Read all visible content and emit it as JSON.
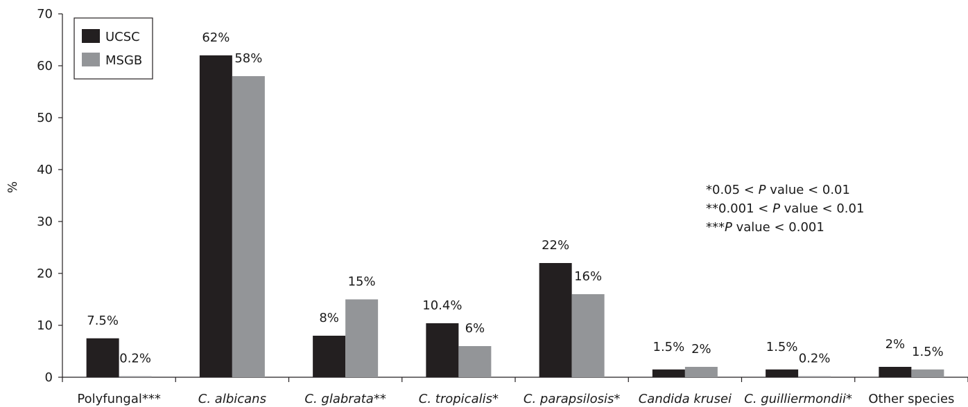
{
  "chart_data": {
    "type": "bar",
    "categories": [
      {
        "label": "Polyfungal***",
        "italic": "",
        "suffix": ""
      },
      {
        "label": "",
        "italic": "C. albicans",
        "suffix": ""
      },
      {
        "label": "",
        "italic": "C. glabrata",
        "suffix": "**"
      },
      {
        "label": "",
        "italic": "C. tropicalis",
        "suffix": "*"
      },
      {
        "label": "",
        "italic": "C. parapsilosis",
        "suffix": "*"
      },
      {
        "label": "",
        "italic": "Candida krusei",
        "suffix": ""
      },
      {
        "label": "",
        "italic": "C. guilliermondii",
        "suffix": "*"
      },
      {
        "label": "Other species",
        "italic": "",
        "suffix": ""
      }
    ],
    "series": [
      {
        "name": "UCSC",
        "color": "#231f20",
        "values": [
          7.5,
          62,
          8,
          10.4,
          22,
          1.5,
          1.5,
          2
        ],
        "labels": [
          "7.5%",
          "62%",
          "8%",
          "10.4%",
          "22%",
          "1.5%",
          "1.5%",
          "2%"
        ]
      },
      {
        "name": "MSGB",
        "color": "#939598",
        "values": [
          0.2,
          58,
          15,
          6,
          16,
          2,
          0.2,
          1.5
        ],
        "labels": [
          "0.2%",
          "58%",
          "15%",
          "6%",
          "16%",
          "2%",
          "0.2%",
          "1.5%"
        ]
      }
    ],
    "ylabel": "%",
    "ylim": [
      0,
      70
    ],
    "yticks": [
      0,
      10,
      20,
      30,
      40,
      50,
      60,
      70
    ],
    "grid": false,
    "legend_position": "top-left",
    "annotations": [
      {
        "a": "*0.05 < ",
        "p": "P",
        "b": " value < 0.01"
      },
      {
        "a": "**0.001 < ",
        "p": "P",
        "b": " value < 0.01"
      },
      {
        "a": "***",
        "p": "P",
        "b": " value < 0.001"
      }
    ]
  }
}
